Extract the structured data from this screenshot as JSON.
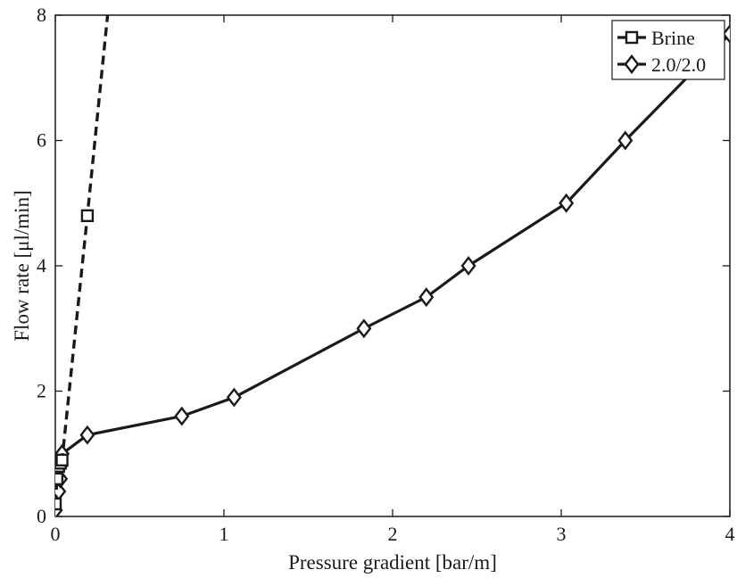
{
  "chart_data": {
    "type": "line",
    "xlabel": "Pressure gradient [bar/m]",
    "ylabel": "Flow rate [μl/min]",
    "xlim": [
      0,
      4
    ],
    "ylim": [
      0,
      8
    ],
    "xticks": [
      0,
      1,
      2,
      3,
      4
    ],
    "yticks": [
      0,
      2,
      4,
      6,
      8
    ],
    "xtick_labels": [
      "0",
      "1",
      "2",
      "3",
      "4"
    ],
    "ytick_labels": [
      "0",
      "2",
      "4",
      "6",
      "8"
    ],
    "grid": false,
    "legend_position": "top-right",
    "series": [
      {
        "name": "Brine",
        "marker": "square",
        "line_style": "dashed",
        "color": "#1a1a1a",
        "x": [
          0,
          0.01,
          0.02,
          0.03,
          0.04,
          0.19
        ],
        "y": [
          0.2,
          0.6,
          0.8,
          0.85,
          0.9,
          4.8
        ],
        "extended_line": {
          "x": [
            0.19,
            0.31
          ],
          "y": [
            4.8,
            8.0
          ]
        }
      },
      {
        "name": "2.0/2.0",
        "marker": "diamond",
        "line_style": "solid",
        "color": "#1a1a1a",
        "x": [
          0.0,
          0.02,
          0.03,
          0.03,
          0.04,
          0.19,
          0.75,
          1.06,
          1.83,
          2.2,
          2.45,
          3.03,
          3.38,
          4.0
        ],
        "y": [
          0.1,
          0.4,
          0.6,
          0.8,
          1.0,
          1.3,
          1.6,
          1.9,
          3.0,
          3.5,
          4.0,
          5.0,
          6.0,
          7.7
        ]
      }
    ]
  }
}
